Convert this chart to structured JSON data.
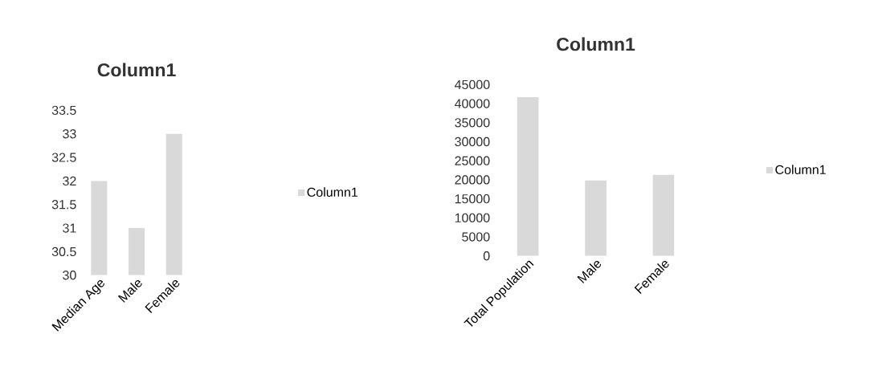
{
  "chart_data": [
    {
      "type": "bar",
      "title": "Column1",
      "categories": [
        "Median Age",
        "Male",
        "Female"
      ],
      "series": [
        {
          "name": "Column1",
          "color": "#d9d9d9",
          "values": [
            32,
            31,
            33
          ]
        }
      ],
      "ylim": [
        30,
        33.5
      ],
      "yticks": [
        30,
        30.5,
        31,
        31.5,
        32,
        32.5,
        33,
        33.5
      ],
      "legend": "right"
    },
    {
      "type": "bar",
      "title": "Column1",
      "categories": [
        "Total Population",
        "Male",
        "Female"
      ],
      "series": [
        {
          "name": "Column1",
          "color": "#d9d9d9",
          "values": [
            41700,
            19800,
            21300
          ]
        }
      ],
      "ylim": [
        0,
        45000
      ],
      "yticks": [
        0,
        5000,
        10000,
        15000,
        20000,
        25000,
        30000,
        35000,
        40000,
        45000
      ],
      "legend": "right"
    }
  ]
}
